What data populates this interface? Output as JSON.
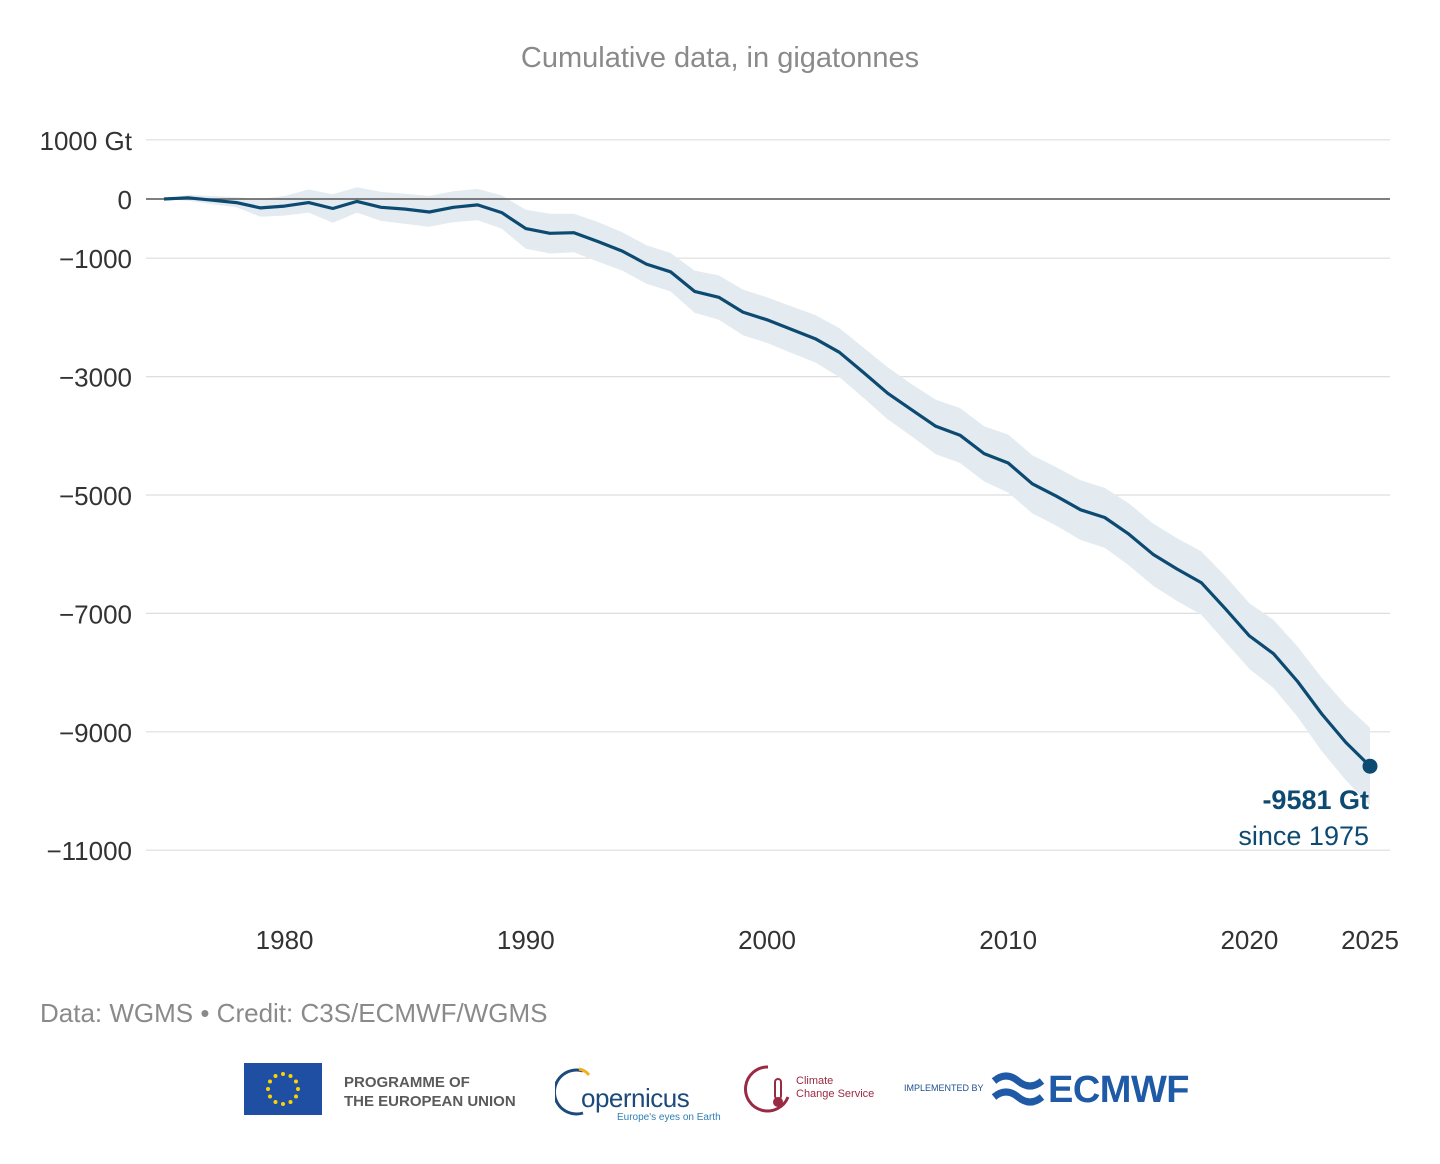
{
  "subtitle": "Cumulative data, in gigatonnes",
  "credit": "Data: WGMS • Credit: C3S/ECMWF/WGMS",
  "colors": {
    "line": "#0d4a72",
    "band": "#e3ebf0",
    "grid": "#dddddd",
    "zero_line": "#555555",
    "tick_text": "#333333",
    "annotation": "#0d4a72"
  },
  "logos": {
    "eu_text": [
      "PROGRAMME OF",
      "THE EUROPEAN UNION"
    ],
    "copernicus_word": "opernicus",
    "copernicus_tagline": "Europe's eyes on Earth",
    "c3s_text": [
      "Climate",
      "Change Service"
    ],
    "implemented_by": "IMPLEMENTED BY",
    "ecmwf_word": "ECMWF",
    "icons": [
      "eu-flag-icon",
      "copernicus-icon",
      "thermometer-cloud-icon",
      "ecmwf-waves-icon"
    ]
  },
  "chart_data": {
    "type": "line",
    "title": "Cumulative data, in gigatonnes",
    "xlabel": "",
    "ylabel": "",
    "xlim": [
      1975,
      2025
    ],
    "ylim": [
      -12000,
      1200
    ],
    "x_ticks": [
      1980,
      1990,
      2000,
      2010,
      2020,
      2025
    ],
    "y_ticks": [
      1000,
      0,
      -1000,
      -3000,
      -5000,
      -7000,
      -9000,
      -11000
    ],
    "y_tick_labels": [
      "1000 Gt",
      "0",
      "−1000",
      "−3000",
      "−5000",
      "−7000",
      "−9000",
      "−11000"
    ],
    "grid": true,
    "x": [
      1975,
      1976,
      1977,
      1978,
      1979,
      1980,
      1981,
      1982,
      1983,
      1984,
      1985,
      1986,
      1987,
      1988,
      1989,
      1990,
      1991,
      1992,
      1993,
      1994,
      1995,
      1996,
      1997,
      1998,
      1999,
      2000,
      2001,
      2002,
      2003,
      2004,
      2005,
      2006,
      2007,
      2008,
      2009,
      2010,
      2011,
      2012,
      2013,
      2014,
      2015,
      2016,
      2017,
      2018,
      2019,
      2020,
      2021,
      2022,
      2023,
      2024,
      2025
    ],
    "series": [
      {
        "values": [
          0,
          20,
          -20,
          -60,
          -150,
          -120,
          -60,
          -160,
          -40,
          -140,
          -170,
          -220,
          -140,
          -100,
          -230,
          -500,
          -580,
          -570,
          -720,
          -880,
          -1100,
          -1230,
          -1560,
          -1660,
          -1910,
          -2040,
          -2200,
          -2360,
          -2590,
          -2930,
          -3280,
          -3560,
          -3840,
          -3990,
          -4300,
          -4460,
          -4810,
          -5020,
          -5250,
          -5380,
          -5660,
          -6000,
          -6250,
          -6480,
          -6920,
          -7380,
          -7680,
          -8150,
          -8700,
          -9180,
          -9581
        ],
        "lower": [
          0,
          -30,
          -90,
          -140,
          -300,
          -280,
          -230,
          -400,
          -230,
          -370,
          -420,
          -470,
          -390,
          -360,
          -500,
          -840,
          -920,
          -900,
          -1060,
          -1210,
          -1430,
          -1560,
          -1920,
          -2040,
          -2300,
          -2430,
          -2600,
          -2760,
          -3010,
          -3360,
          -3720,
          -4010,
          -4310,
          -4460,
          -4770,
          -4960,
          -5310,
          -5520,
          -5760,
          -5890,
          -6190,
          -6530,
          -6790,
          -7020,
          -7480,
          -7940,
          -8260,
          -8750,
          -9330,
          -9820,
          -10250
        ],
        "upper": [
          0,
          70,
          50,
          30,
          0,
          50,
          160,
          80,
          200,
          120,
          90,
          50,
          130,
          170,
          60,
          -180,
          -250,
          -250,
          -390,
          -560,
          -780,
          -910,
          -1210,
          -1290,
          -1530,
          -1660,
          -1810,
          -1960,
          -2180,
          -2510,
          -2840,
          -3130,
          -3390,
          -3530,
          -3840,
          -3980,
          -4330,
          -4530,
          -4750,
          -4880,
          -5140,
          -5480,
          -5730,
          -5950,
          -6370,
          -6830,
          -7110,
          -7560,
          -8090,
          -8550,
          -8930
        ]
      }
    ],
    "annotation": {
      "value_label": "-9581 Gt",
      "since_label": "since 1975",
      "x": 2025,
      "y": -9581
    }
  }
}
